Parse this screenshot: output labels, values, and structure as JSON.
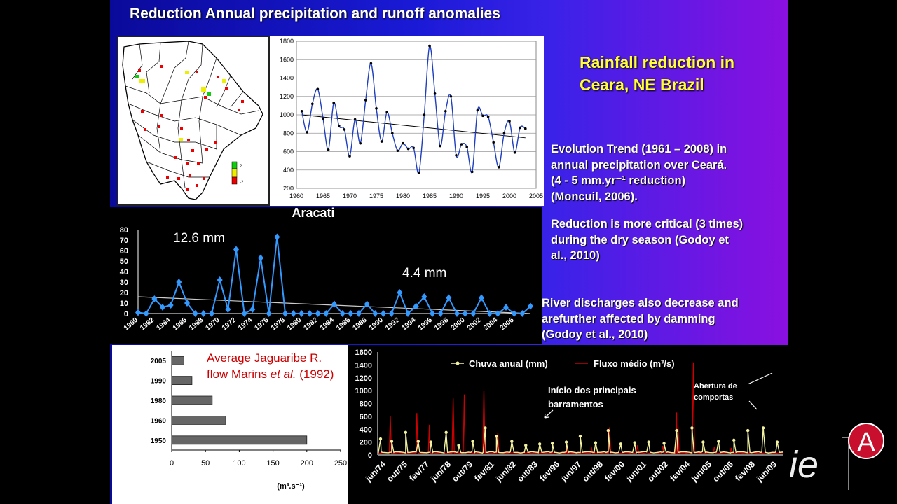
{
  "slide": {
    "title": "Reduction Annual precipitation and runoff anomalies",
    "side_title_line1": "Rainfall reduction in",
    "side_title_line2": "Ceara, NE Brazil",
    "block1_line1": "Evolution Trend (1961 – 2008) in",
    "block1_line2": "annual precipitation over Ceará.",
    "block1_line3": "(4 - 5 mm.yr⁻¹ reduction)",
    "block1_line4": "(Moncuil, 2006).",
    "block2_line1": "Reduction is more critical (3 times)",
    "block2_line2": "during the dry season (Godoy et",
    "block2_line3": "al., 2010)",
    "block3_line1": "River discharges also decrease and",
    "block3_line2": "arefurther affected by damming",
    "block3_line3": "(Godoy et al., 2010)",
    "colors": {
      "title_yellow": "#ffff33",
      "series_blue": "#1f3fbf",
      "aracati_blue": "#3399ff",
      "flow_red": "#cc0000",
      "chuva_yellow": "#f2f2a0"
    }
  },
  "map": {
    "legend_top": "2",
    "legend_bottom": "-2",
    "icon": "ceara-state-map"
  },
  "logo": {
    "text": "ie",
    "badge_letter": "A"
  },
  "chart_data": [
    {
      "id": "precip",
      "type": "line",
      "title": "",
      "x": [
        1961,
        1962,
        1963,
        1964,
        1965,
        1966,
        1967,
        1968,
        1969,
        1970,
        1971,
        1972,
        1973,
        1974,
        1975,
        1976,
        1977,
        1978,
        1979,
        1980,
        1981,
        1982,
        1983,
        1984,
        1985,
        1986,
        1987,
        1988,
        1989,
        1990,
        1991,
        1992,
        1993,
        1994,
        1995,
        1996,
        1997,
        1998,
        1999,
        2000,
        2001,
        2002,
        2003
      ],
      "values": [
        1040,
        810,
        1120,
        1280,
        960,
        620,
        1130,
        880,
        840,
        550,
        950,
        690,
        1160,
        1560,
        1070,
        710,
        1030,
        800,
        610,
        690,
        630,
        640,
        370,
        1000,
        1750,
        1230,
        660,
        1040,
        1200,
        560,
        680,
        650,
        380,
        1050,
        990,
        980,
        700,
        430,
        800,
        930,
        590,
        860,
        850
      ],
      "trend": [
        1000,
        750
      ],
      "xticks": [
        "1960",
        "1965",
        "1970",
        "1975",
        "1980",
        "1985",
        "1990",
        "1995",
        "2000",
        "2005"
      ],
      "yticks": [
        "200",
        "400",
        "600",
        "800",
        "1000",
        "1200",
        "1400",
        "1600",
        "1800"
      ],
      "ylim": [
        200,
        1800
      ],
      "xlim": [
        1960,
        2005
      ],
      "grid": true
    },
    {
      "id": "aracati",
      "type": "line",
      "title": "Aracati",
      "x": [
        1960,
        1961,
        1962,
        1963,
        1964,
        1965,
        1966,
        1967,
        1968,
        1969,
        1970,
        1971,
        1972,
        1973,
        1974,
        1975,
        1976,
        1977,
        1978,
        1979,
        1980,
        1981,
        1982,
        1983,
        1984,
        1985,
        1986,
        1987,
        1988,
        1989,
        1990,
        1991,
        1992,
        1993,
        1994,
        1995,
        1996,
        1997,
        1998,
        1999,
        2000,
        2001,
        2002,
        2003,
        2004,
        2005,
        2006,
        2007,
        2008
      ],
      "values": [
        1,
        0,
        14,
        6,
        8,
        30,
        10,
        0,
        0,
        0,
        32,
        4,
        61,
        0,
        4,
        53,
        0,
        73,
        0,
        0,
        0,
        0,
        0,
        0,
        9,
        0,
        0,
        0,
        9,
        0,
        0,
        0,
        20,
        0,
        7,
        16,
        0,
        0,
        15,
        0,
        0,
        0,
        15,
        0,
        0,
        6,
        0,
        0,
        7
      ],
      "trend": [
        16,
        0
      ],
      "annotation_left": "12.6 mm",
      "annotation_right": "4.4 mm",
      "xticks": [
        "1960",
        "1962",
        "1964",
        "1966",
        "1968",
        "1970",
        "1972",
        "1974",
        "1976",
        "1978",
        "1980",
        "1982",
        "1984",
        "1986",
        "1988",
        "1990",
        "1992",
        "1994",
        "1996",
        "1998",
        "2000",
        "2002",
        "2004",
        "2006"
      ],
      "yticks": [
        "0",
        "10",
        "20",
        "30",
        "40",
        "50",
        "60",
        "70",
        "80"
      ],
      "ylim": [
        0,
        80
      ]
    },
    {
      "id": "jaguaribe",
      "type": "bar",
      "title": "Average Jaguaribe R. flow Marins et al. (1992)",
      "title_line1": "Average Jaguaribe R.",
      "title_line2_a": "flow Marins ",
      "title_line2_b": "et al.",
      "title_line2_c": " (1992)",
      "categories": [
        "2005",
        "1990",
        "1980",
        "1960",
        "1950"
      ],
      "values": [
        18,
        30,
        60,
        80,
        200
      ],
      "xticks": [
        "0",
        "50",
        "100",
        "150",
        "200",
        "250"
      ],
      "xlabel": "(m³.s⁻¹)",
      "xlim": [
        0,
        250
      ]
    },
    {
      "id": "chuva",
      "type": "line",
      "legend_rain": "Chuva anual (mm)",
      "legend_flow": "Fluxo médio (m³/s)",
      "annotation_dams_line1": "Início dos principais",
      "annotation_dams_line2": "barramentos",
      "annotation_gates_line1": "Abertura de",
      "annotation_gates_line2": "comportas",
      "xticks": [
        "jun/74",
        "out/75",
        "fev/77",
        "jun/78",
        "out/79",
        "fev/81",
        "jun/82",
        "out/83",
        "fev/96",
        "jun/97",
        "out/98",
        "fev/00",
        "jun/01",
        "out/02",
        "fev/04",
        "jun/05",
        "out/06",
        "fev/08",
        "jun/09"
      ],
      "yticks": [
        "0",
        "200",
        "400",
        "600",
        "800",
        "1000",
        "1200",
        "1400",
        "1600"
      ],
      "ylim": [
        0,
        1600
      ],
      "rain_peaks": [
        [
          0.2,
          250
        ],
        [
          1.0,
          210
        ],
        [
          2.0,
          350
        ],
        [
          2.9,
          210
        ],
        [
          3.8,
          200
        ],
        [
          4.9,
          350
        ],
        [
          5.8,
          150
        ],
        [
          6.8,
          210
        ],
        [
          7.7,
          420
        ],
        [
          8.5,
          290
        ],
        [
          9.6,
          210
        ],
        [
          10.6,
          150
        ],
        [
          11.6,
          170
        ],
        [
          12.5,
          180
        ],
        [
          13.5,
          200
        ],
        [
          14.5,
          290
        ],
        [
          15.6,
          190
        ],
        [
          16.5,
          380
        ],
        [
          17.4,
          170
        ],
        [
          18.4,
          190
        ],
        [
          19.4,
          200
        ],
        [
          20.5,
          180
        ],
        [
          21.4,
          380
        ],
        [
          22.5,
          420
        ],
        [
          23.3,
          200
        ],
        [
          24.4,
          210
        ],
        [
          25.5,
          230
        ],
        [
          26.5,
          380
        ],
        [
          27.6,
          420
        ],
        [
          28.6,
          200
        ]
      ],
      "flow_peaks": [
        [
          0.9,
          600
        ],
        [
          2.8,
          650
        ],
        [
          3.7,
          470
        ],
        [
          5.4,
          880
        ],
        [
          6.2,
          940
        ],
        [
          7.6,
          990
        ],
        [
          8.6,
          350
        ],
        [
          13.5,
          130
        ],
        [
          15.3,
          120
        ],
        [
          16.6,
          430
        ],
        [
          18.6,
          150
        ],
        [
          20.4,
          140
        ],
        [
          21.4,
          660
        ],
        [
          21.5,
          440
        ],
        [
          22.6,
          1440
        ],
        [
          24.1,
          120
        ],
        [
          25.3,
          110
        ]
      ]
    }
  ]
}
